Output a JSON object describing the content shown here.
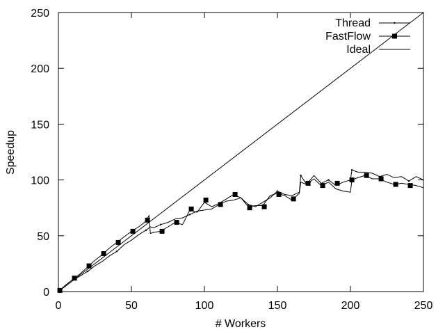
{
  "chart_data": {
    "type": "line",
    "xlabel": "# Workers",
    "ylabel": "Speedup",
    "xlim": [
      0,
      250
    ],
    "ylim": [
      0,
      250
    ],
    "xticks": [
      0,
      50,
      100,
      150,
      200,
      250
    ],
    "yticks": [
      0,
      50,
      100,
      150,
      200,
      250
    ],
    "grid": false,
    "legend_position": "top-right",
    "series": [
      {
        "name": "Thread",
        "marker": "small-dot",
        "x": [
          1,
          5,
          10,
          15,
          20,
          25,
          30,
          35,
          40,
          45,
          50,
          55,
          60,
          62,
          63,
          65,
          70,
          75,
          80,
          85,
          90,
          95,
          100,
          105,
          110,
          115,
          120,
          125,
          130,
          135,
          140,
          145,
          150,
          155,
          160,
          165,
          166,
          170,
          175,
          180,
          185,
          190,
          195,
          200,
          201,
          205,
          210,
          215,
          220,
          225,
          230,
          235,
          240,
          245,
          250
        ],
        "y": [
          1,
          5,
          10,
          14,
          18,
          23,
          27,
          32,
          36,
          42,
          46,
          51,
          55,
          57,
          58,
          57,
          60,
          62,
          65,
          66,
          69,
          72,
          73,
          74,
          78,
          81,
          82,
          84,
          78,
          76,
          80,
          84,
          90,
          87,
          86,
          89,
          104,
          96,
          104,
          97,
          100,
          95,
          98,
          100,
          109,
          107,
          107,
          106,
          103,
          105,
          102,
          103,
          99,
          103,
          100
        ]
      },
      {
        "name": "FastFlow",
        "marker": "square",
        "x": [
          1,
          5,
          10,
          15,
          20,
          25,
          30,
          35,
          40,
          45,
          50,
          55,
          60,
          62,
          63,
          65,
          70,
          75,
          80,
          85,
          90,
          95,
          100,
          105,
          110,
          115,
          120,
          125,
          130,
          135,
          140,
          145,
          150,
          155,
          160,
          165,
          166,
          170,
          175,
          180,
          185,
          190,
          195,
          200,
          201,
          205,
          210,
          215,
          220,
          225,
          230,
          235,
          240,
          245,
          250
        ],
        "y": [
          1,
          6,
          11,
          16,
          22,
          28,
          33,
          39,
          44,
          49,
          54,
          58,
          63,
          68,
          52,
          53,
          54,
          58,
          62,
          60,
          73,
          71,
          80,
          76,
          79,
          83,
          87,
          84,
          76,
          77,
          77,
          86,
          88,
          86,
          82,
          88,
          98,
          96,
          101,
          95,
          98,
          92,
          90,
          89,
          100,
          102,
          104,
          101,
          101,
          98,
          96,
          97,
          96,
          95,
          93
        ],
        "marker_x": [
          1,
          11,
          21,
          31,
          41,
          51,
          61,
          71,
          81,
          91,
          101,
          111,
          121,
          131,
          141,
          151,
          161,
          171,
          181,
          191,
          201,
          211,
          221,
          231,
          241
        ],
        "marker_y": [
          1,
          12,
          23,
          34,
          44,
          54,
          64,
          54,
          62,
          74,
          82,
          78,
          87,
          75,
          76,
          87,
          83,
          97,
          95,
          97,
          100,
          104,
          101,
          96,
          95
        ]
      },
      {
        "name": "Ideal",
        "marker": "none",
        "x": [
          0,
          250
        ],
        "y": [
          0,
          250
        ]
      }
    ]
  }
}
